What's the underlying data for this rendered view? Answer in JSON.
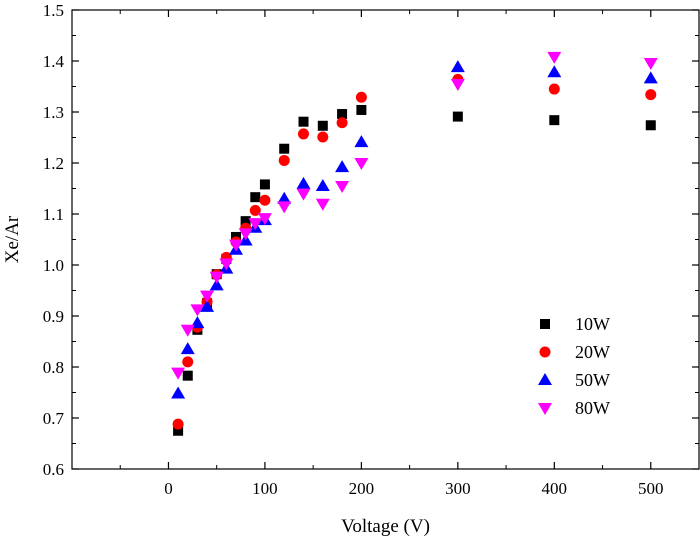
{
  "chart_data": {
    "type": "scatter",
    "xlabel": "Voltage (V)",
    "ylabel": "Xe/Ar",
    "xlim": [
      -100,
      550
    ],
    "ylim": [
      0.6,
      1.5
    ],
    "xticks": [
      0,
      100,
      200,
      300,
      400,
      500
    ],
    "yticks": [
      0.6,
      0.7,
      0.8,
      0.9,
      1.0,
      1.1,
      1.2,
      1.3,
      1.4,
      1.5
    ],
    "xtick_labels": [
      "0",
      "100",
      "200",
      "300",
      "400",
      "500"
    ],
    "ytick_labels": [
      "0.6",
      "0.7",
      "0.8",
      "0.9",
      "1.0",
      "1.1",
      "1.2",
      "1.3",
      "1.4",
      "1.5"
    ],
    "legend_position": "center-right",
    "grid": false,
    "series": [
      {
        "name": "10W",
        "marker": "square",
        "color": "#000000",
        "points": [
          [
            10,
            0.675
          ],
          [
            20,
            0.783
          ],
          [
            30,
            0.873
          ],
          [
            40,
            0.925
          ],
          [
            50,
            0.982
          ],
          [
            60,
            1.012
          ],
          [
            70,
            1.055
          ],
          [
            80,
            1.086
          ],
          [
            90,
            1.133
          ],
          [
            100,
            1.158
          ],
          [
            120,
            1.228
          ],
          [
            140,
            1.281
          ],
          [
            160,
            1.273
          ],
          [
            180,
            1.296
          ],
          [
            200,
            1.304
          ],
          [
            300,
            1.291
          ],
          [
            400,
            1.284
          ],
          [
            500,
            1.274
          ]
        ]
      },
      {
        "name": "20W",
        "marker": "circle",
        "color": "#ff0000",
        "points": [
          [
            10,
            0.688
          ],
          [
            20,
            0.81
          ],
          [
            30,
            0.878
          ],
          [
            40,
            0.928
          ],
          [
            50,
            0.981
          ],
          [
            60,
            1.015
          ],
          [
            70,
            1.045
          ],
          [
            80,
            1.072
          ],
          [
            90,
            1.107
          ],
          [
            100,
            1.127
          ],
          [
            120,
            1.205
          ],
          [
            140,
            1.257
          ],
          [
            160,
            1.251
          ],
          [
            180,
            1.279
          ],
          [
            200,
            1.329
          ],
          [
            300,
            1.364
          ],
          [
            400,
            1.345
          ],
          [
            500,
            1.334
          ]
        ]
      },
      {
        "name": "50W",
        "marker": "triangle-up",
        "color": "#0000ff",
        "points": [
          [
            10,
            0.748
          ],
          [
            20,
            0.835
          ],
          [
            30,
            0.886
          ],
          [
            40,
            0.918
          ],
          [
            50,
            0.96
          ],
          [
            60,
            0.993
          ],
          [
            70,
            1.03
          ],
          [
            80,
            1.048
          ],
          [
            90,
            1.073
          ],
          [
            100,
            1.088
          ],
          [
            120,
            1.13
          ],
          [
            140,
            1.159
          ],
          [
            160,
            1.155
          ],
          [
            180,
            1.192
          ],
          [
            200,
            1.241
          ],
          [
            300,
            1.388
          ],
          [
            400,
            1.378
          ],
          [
            500,
            1.366
          ]
        ]
      },
      {
        "name": "80W",
        "marker": "triangle-down",
        "color": "#ff00ff",
        "points": [
          [
            10,
            0.789
          ],
          [
            20,
            0.873
          ],
          [
            30,
            0.913
          ],
          [
            40,
            0.94
          ],
          [
            50,
            0.977
          ],
          [
            60,
            1.003
          ],
          [
            70,
            1.04
          ],
          [
            80,
            1.062
          ],
          [
            90,
            1.082
          ],
          [
            100,
            1.092
          ],
          [
            120,
            1.115
          ],
          [
            140,
            1.14
          ],
          [
            160,
            1.12
          ],
          [
            180,
            1.155
          ],
          [
            200,
            1.2
          ],
          [
            300,
            1.355
          ],
          [
            400,
            1.408
          ],
          [
            500,
            1.396
          ]
        ]
      }
    ]
  }
}
